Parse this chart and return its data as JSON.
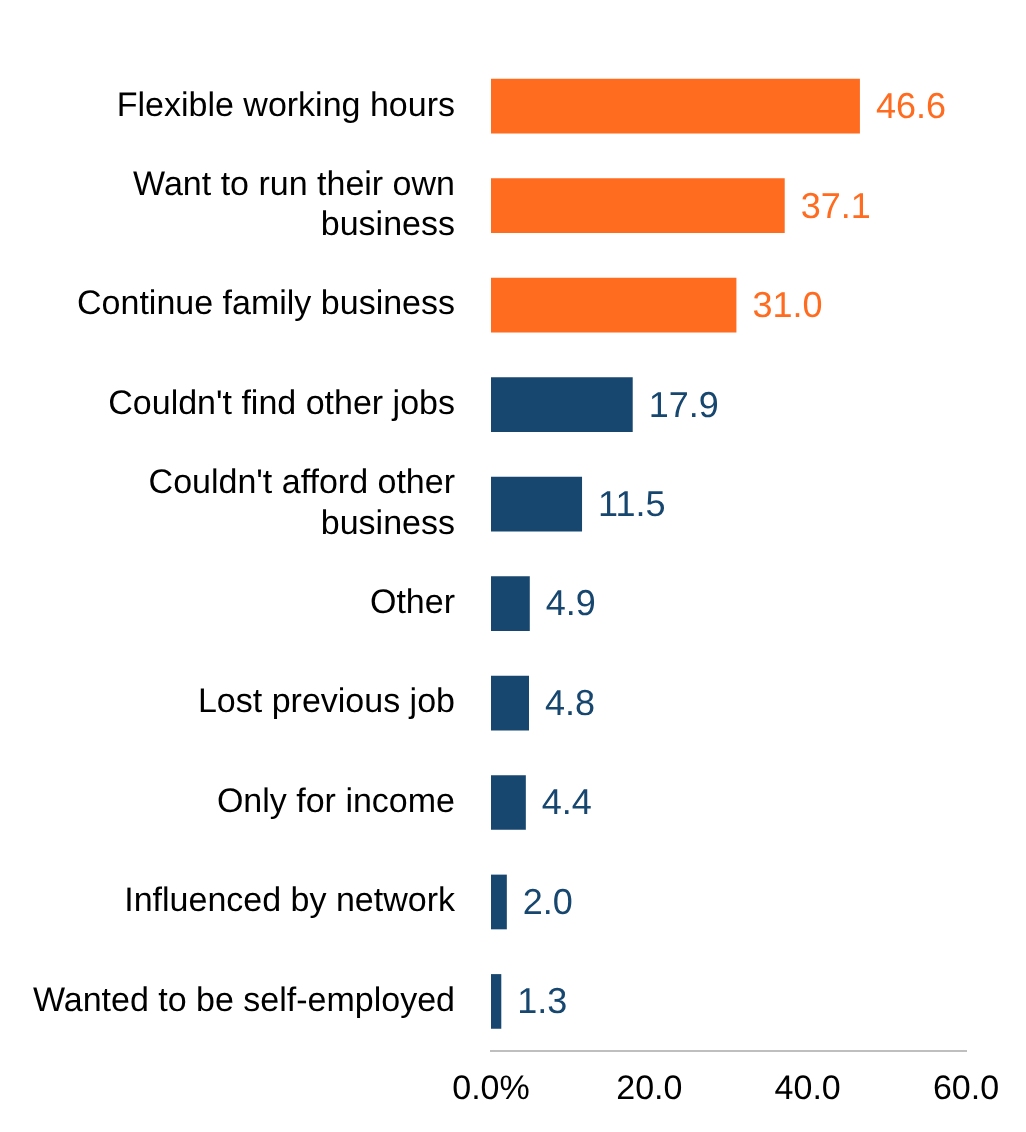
{
  "chart_data": {
    "type": "bar",
    "orientation": "horizontal",
    "categories": [
      "Flexible working hours",
      "Want to run their own business",
      "Continue family business",
      "Couldn't find other jobs",
      "Couldn't afford other business",
      "Other",
      "Lost previous job",
      "Only for income",
      "Influenced by network",
      "Wanted to be self-employed"
    ],
    "values": [
      46.6,
      37.1,
      31.0,
      17.9,
      11.5,
      4.9,
      4.8,
      4.4,
      2.0,
      1.3
    ],
    "colors": [
      "#ff6b1f",
      "#ff6b1f",
      "#ff6b1f",
      "#17466f",
      "#17466f",
      "#17466f",
      "#17466f",
      "#17466f",
      "#17466f",
      "#17466f"
    ],
    "value_labels": [
      "46.6",
      "37.1",
      "31.0",
      "17.9",
      "11.5",
      "4.9",
      "4.8",
      "4.4",
      "2.0",
      "1.3"
    ],
    "xlim": [
      0,
      60
    ],
    "xticks": [
      {
        "value": 0,
        "label": "0.0%"
      },
      {
        "value": 20,
        "label": "20.0"
      },
      {
        "value": 40,
        "label": "40.0"
      },
      {
        "value": 60,
        "label": "60.0"
      }
    ],
    "grid": false,
    "legend": false
  }
}
